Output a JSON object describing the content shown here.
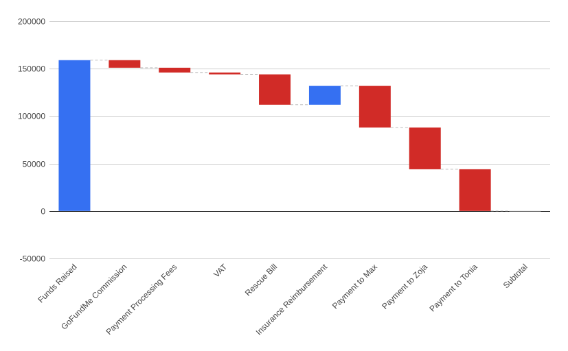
{
  "chart_data": {
    "type": "bar",
    "subtype": "waterfall",
    "title": "",
    "xlabel": "",
    "ylabel": "",
    "ylim": [
      -50000,
      200000
    ],
    "yticks": [
      -50000,
      0,
      50000,
      100000,
      150000,
      200000
    ],
    "grid": true,
    "legend": "none",
    "categories": [
      "Funds Raised",
      "GoFundMe Commission",
      "Payment Processing Fees",
      "VAT",
      "Rescue Bill",
      "Insurance Reimbursement",
      "Payment to Max",
      "Payment to Zoja",
      "Payment to Tonia",
      "Subtotal"
    ],
    "values": [
      159000,
      -8000,
      -5000,
      -2000,
      -32000,
      20000,
      -44000,
      -44000,
      -44000,
      0
    ],
    "colors": {
      "increase": "#3570f2",
      "decrease": "#d12b27",
      "subtotal": "#9e9e9e",
      "grid": "#cccccc",
      "axis": "#333333",
      "connector": "#bdbdbd"
    }
  }
}
